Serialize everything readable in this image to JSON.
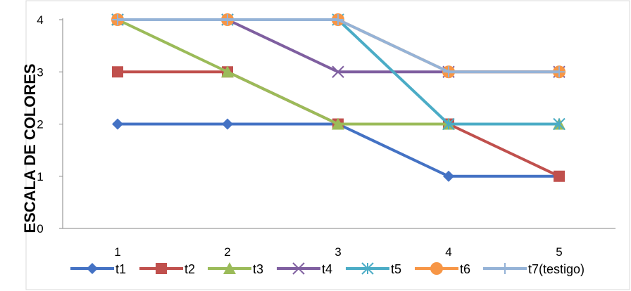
{
  "chart_data": {
    "type": "line",
    "title": "",
    "xlabel": "",
    "ylabel": "ESCALA DE COLORES",
    "x": [
      1,
      2,
      3,
      4,
      5
    ],
    "ylim": [
      0,
      4
    ],
    "yticks": [
      0,
      1,
      2,
      3,
      4
    ],
    "grid": false,
    "legend_position": "bottom",
    "series": [
      {
        "name": "t1",
        "values": [
          2,
          2,
          2,
          1,
          1
        ],
        "color": "#4472C4",
        "marker": "diamond"
      },
      {
        "name": "t2",
        "values": [
          3,
          3,
          2,
          2,
          1
        ],
        "color": "#C0504D",
        "marker": "square"
      },
      {
        "name": "t3",
        "values": [
          4,
          3,
          2,
          2,
          2
        ],
        "color": "#9BBB59",
        "marker": "triangle"
      },
      {
        "name": "t4",
        "values": [
          4,
          4,
          3,
          3,
          3
        ],
        "color": "#7F5FA0",
        "marker": "x"
      },
      {
        "name": "t5",
        "values": [
          4,
          4,
          4,
          2,
          2
        ],
        "color": "#4BACC6",
        "marker": "asterisk"
      },
      {
        "name": "t6",
        "values": [
          4,
          4,
          4,
          3,
          3
        ],
        "color": "#F79646",
        "marker": "circle"
      },
      {
        "name": "t7(testigo)",
        "values": [
          4,
          4,
          4,
          3,
          3
        ],
        "color": "#95B3D7",
        "marker": "plus"
      }
    ]
  }
}
